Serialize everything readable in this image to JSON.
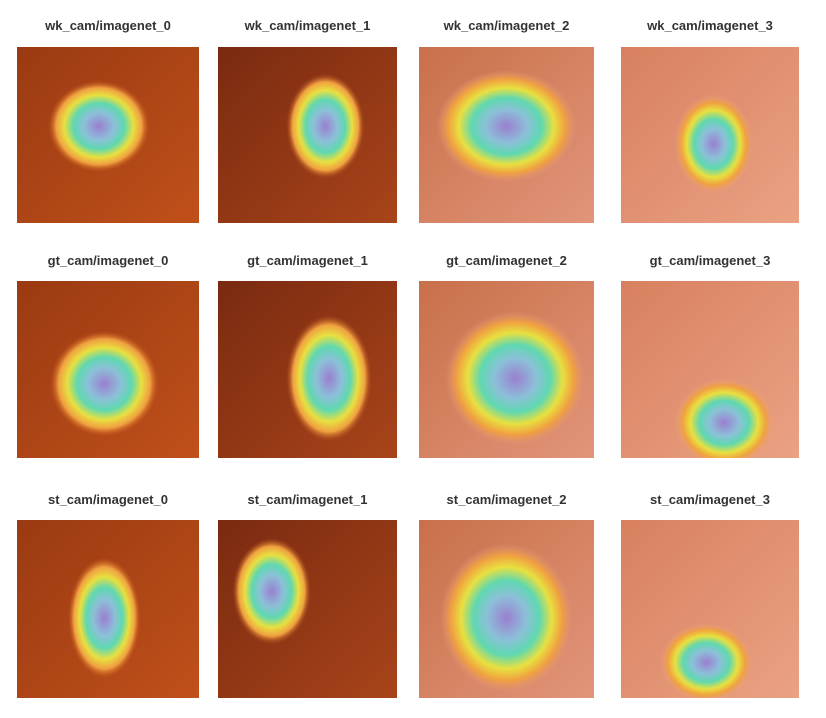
{
  "panels": [
    {
      "title": "wk_cam/imagenet_0",
      "image": "dog-fluffy-heatmap",
      "palette": "dog"
    },
    {
      "title": "wk_cam/imagenet_1",
      "image": "graduate-face-heatmap",
      "palette": "grad"
    },
    {
      "title": "wk_cam/imagenet_2",
      "image": "white-dog-blanket-heatmap",
      "palette": "pale"
    },
    {
      "title": "wk_cam/imagenet_3",
      "image": "person-small-dog-heatmap",
      "palette": "floor"
    },
    {
      "title": "gt_cam/imagenet_0",
      "image": "dog-fluffy-heatmap",
      "palette": "dog"
    },
    {
      "title": "gt_cam/imagenet_1",
      "image": "graduate-face-heatmap",
      "palette": "grad"
    },
    {
      "title": "gt_cam/imagenet_2",
      "image": "white-dog-blanket-heatmap",
      "palette": "pale"
    },
    {
      "title": "gt_cam/imagenet_3",
      "image": "person-small-dog-heatmap",
      "palette": "floor"
    },
    {
      "title": "st_cam/imagenet_0",
      "image": "dog-fluffy-heatmap",
      "palette": "dog"
    },
    {
      "title": "st_cam/imagenet_1",
      "image": "graduate-face-heatmap",
      "palette": "grad"
    },
    {
      "title": "st_cam/imagenet_2",
      "image": "white-dog-blanket-heatmap",
      "palette": "pale"
    },
    {
      "title": "st_cam/imagenet_3",
      "image": "person-small-dog-heatmap",
      "palette": "floor"
    }
  ]
}
